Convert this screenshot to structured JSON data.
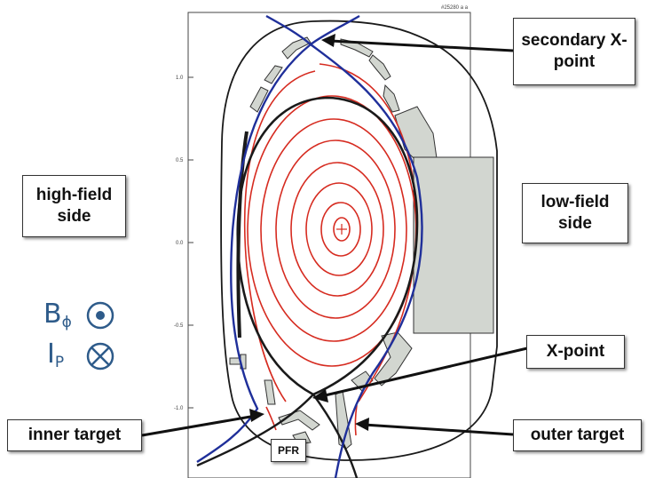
{
  "labels": {
    "secondary_xpoint": "secondary X-point",
    "high_field_side": "high-field side",
    "low_field_side": "low-field side",
    "xpoint": "X-point",
    "inner_target": "inner target",
    "outer_target": "outer target",
    "pfr": "PFR"
  },
  "legend": {
    "b_symbol": "B",
    "b_sub": "ϕ",
    "i_symbol": "I",
    "i_sub": "P"
  },
  "axis": {
    "y_ticks": [
      "1.0",
      "0.5",
      "0.0",
      "-0.5",
      "-1.0"
    ],
    "corner_id": "#25280 a a"
  },
  "colors": {
    "flux_surface": "#d62b20",
    "separatrix": "#1f2f9a",
    "wall": "#1a1a1a",
    "component": "#d2d6d0",
    "legend_text": "#2e5b8a"
  }
}
